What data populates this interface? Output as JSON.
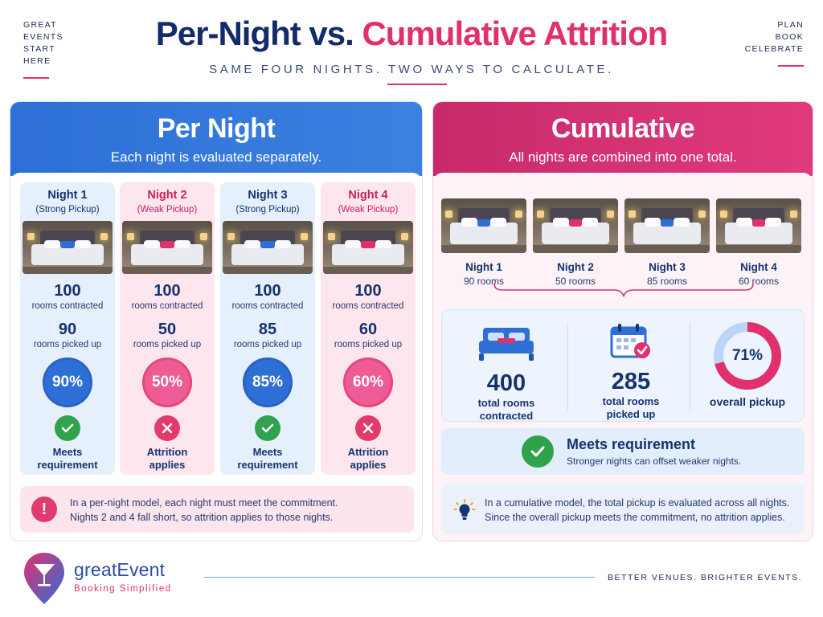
{
  "header": {
    "tag_left": [
      "GREAT",
      "EVENTS",
      "START",
      "HERE"
    ],
    "tag_right": [
      "PLAN",
      "BOOK",
      "CELEBRATE"
    ],
    "title_part1": "Per-Night vs.",
    "title_part2": "Cumulative Attrition",
    "subtitle": "SAME FOUR NIGHTS. TWO WAYS TO CALCULATE."
  },
  "colors": {
    "blue_accent": "#2e6fd6",
    "pink_accent": "#e0306e",
    "navy_text": "#16336f",
    "success_green": "#2fa24b"
  },
  "per_night": {
    "title": "Per Night",
    "description": "Each night is evaluated separately.",
    "nights": [
      {
        "title": "Night 1",
        "strength": "(Strong Pickup)",
        "contracted": "100",
        "contracted_label": "rooms contracted",
        "picked": "90",
        "picked_label": "rooms picked up",
        "percent": "90%",
        "status": "Meets requirement",
        "status_icon": "check-icon",
        "theme": "blue"
      },
      {
        "title": "Night 2",
        "strength": "(Weak Pickup)",
        "contracted": "100",
        "contracted_label": "rooms contracted",
        "picked": "50",
        "picked_label": "rooms picked up",
        "percent": "50%",
        "status": "Attrition applies",
        "status_icon": "x-icon",
        "theme": "pink"
      },
      {
        "title": "Night 3",
        "strength": "(Strong Pickup)",
        "contracted": "100",
        "contracted_label": "rooms contracted",
        "picked": "85",
        "picked_label": "rooms picked up",
        "percent": "85%",
        "status": "Meets requirement",
        "status_icon": "check-icon",
        "theme": "blue"
      },
      {
        "title": "Night 4",
        "strength": "(Weak Pickup)",
        "contracted": "100",
        "contracted_label": "rooms contracted",
        "picked": "60",
        "picked_label": "rooms picked up",
        "percent": "60%",
        "status": "Attrition applies",
        "status_icon": "x-icon",
        "theme": "pink"
      }
    ],
    "note_line1": "In a per-night model, each night must meet the commitment.",
    "note_line2": "Nights 2 and 4 fall short, so attrition applies to those nights."
  },
  "cumulative": {
    "title": "Cumulative",
    "description": "All nights are combined into one total.",
    "nights": [
      {
        "title": "Night 1",
        "rooms": "90 rooms"
      },
      {
        "title": "Night 2",
        "rooms": "50 rooms"
      },
      {
        "title": "Night 3",
        "rooms": "85 rooms"
      },
      {
        "title": "Night 4",
        "rooms": "60 rooms"
      }
    ],
    "total_contracted": "400",
    "total_contracted_label": "total rooms contracted",
    "total_picked": "285",
    "total_picked_label": "total rooms picked up",
    "overall_percent": "71%",
    "overall_fraction": 0.71,
    "overall_label": "overall pickup",
    "meets_title": "Meets requirement",
    "meets_sub": "Stronger nights can offset weaker nights.",
    "note_line1": "In a cumulative model, the total pickup is evaluated across all nights.",
    "note_line2": "Since the overall pickup meets the commitment, no attrition applies."
  },
  "footer": {
    "brand": "greatEvent",
    "brand_sub": "Booking Simplified",
    "tagline": "BETTER VENUES. BRIGHTER EVENTS."
  }
}
